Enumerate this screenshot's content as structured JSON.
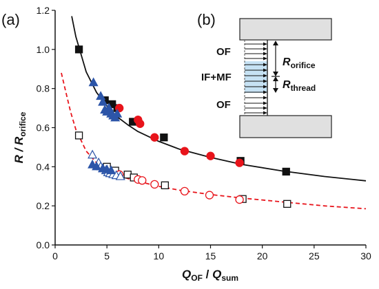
{
  "chart_data": {
    "type": "scatter",
    "panel_a_label": "(a)",
    "panel_b_label": "(b)",
    "xlabel": {
      "main": "Q",
      "sub": "OF",
      "sep": " / ",
      "main2": "Q",
      "sub2": "sum"
    },
    "ylabel": {
      "main": "R / R",
      "sub": "orifice"
    },
    "xlim": [
      0,
      30
    ],
    "ylim": [
      0,
      1.2
    ],
    "xticks": [
      "0",
      "5",
      "10",
      "15",
      "20",
      "25",
      "30"
    ],
    "yticks": [
      "0.0",
      "0.2",
      "0.4",
      "0.6",
      "0.8",
      "1.0",
      "1.2"
    ],
    "grid": false,
    "colors": {
      "black": "#111111",
      "red": "#e8141b",
      "blue": "#2c55a8",
      "fit_dashed": "#e8141b",
      "inset_fill": "#e0e0e0",
      "thread_fill": "#c6e2f4"
    },
    "fits": [
      {
        "style": "solid",
        "color": "#111111",
        "x": [
          1.6,
          2,
          3,
          4,
          5,
          6,
          7,
          8,
          10,
          12,
          15,
          18,
          22,
          26,
          30
        ],
        "y": [
          1.17,
          1.065,
          0.885,
          0.78,
          0.71,
          0.655,
          0.615,
          0.58,
          0.53,
          0.49,
          0.448,
          0.412,
          0.378,
          0.35,
          0.328
        ]
      },
      {
        "style": "dashed",
        "color": "#e8141b",
        "x": [
          0.6,
          1,
          1.5,
          2,
          3,
          4,
          5,
          6,
          7,
          8,
          10,
          12,
          15,
          18,
          22,
          26,
          30
        ],
        "y": [
          0.88,
          0.79,
          0.68,
          0.59,
          0.48,
          0.42,
          0.385,
          0.36,
          0.34,
          0.325,
          0.3,
          0.28,
          0.258,
          0.24,
          0.22,
          0.2,
          0.185
        ]
      }
    ],
    "series": [
      {
        "marker": "square",
        "fill": "filled",
        "color": "#111111",
        "x": [
          2.3,
          4.8,
          5.5,
          6.0,
          7.5,
          10.5,
          17.9,
          22.3
        ],
        "y": [
          1.0,
          0.74,
          0.72,
          0.7,
          0.63,
          0.55,
          0.43,
          0.375
        ]
      },
      {
        "marker": "circle",
        "fill": "filled",
        "color": "#e8141b",
        "x": [
          6.2,
          8.0,
          8.2,
          9.6,
          12.5,
          15.0,
          17.8
        ],
        "y": [
          0.7,
          0.64,
          0.62,
          0.55,
          0.48,
          0.455,
          0.42
        ]
      },
      {
        "marker": "triangle",
        "fill": "filled",
        "color": "#2c55a8",
        "x": [
          3.7,
          4.4,
          4.6,
          4.8,
          5.0,
          5.2,
          5.4,
          5.6,
          5.8,
          6.0
        ],
        "y": [
          0.83,
          0.76,
          0.73,
          0.69,
          0.68,
          0.7,
          0.67,
          0.66,
          0.65,
          0.67
        ]
      },
      {
        "marker": "square",
        "fill": "open",
        "color": "#111111",
        "x": [
          2.3,
          5.0,
          5.8,
          7.0,
          7.6,
          10.6,
          18.1,
          22.4
        ],
        "y": [
          0.56,
          0.4,
          0.38,
          0.36,
          0.345,
          0.305,
          0.235,
          0.21
        ]
      },
      {
        "marker": "circle",
        "fill": "open",
        "color": "#e8141b",
        "x": [
          6.2,
          8.0,
          8.4,
          9.6,
          12.5,
          14.9,
          17.8
        ],
        "y": [
          0.36,
          0.335,
          0.33,
          0.31,
          0.275,
          0.255,
          0.232
        ]
      },
      {
        "marker": "triangle",
        "fill": "open",
        "color": "#2c55a8",
        "x": [
          3.6,
          4.2,
          4.4,
          4.6,
          4.9,
          5.1,
          5.3,
          5.6,
          5.9,
          6.3
        ],
        "y": [
          0.46,
          0.42,
          0.4,
          0.39,
          0.38,
          0.37,
          0.365,
          0.36,
          0.355,
          0.35
        ]
      },
      {
        "marker": "triangle",
        "fill": "filled",
        "color": "#2c55a8",
        "x": [
          3.6,
          4.0,
          4.6,
          5.0,
          5.4
        ],
        "y": [
          0.41,
          0.4,
          0.39,
          0.385,
          0.38
        ]
      }
    ],
    "inset": {
      "labels_left": [
        "OF",
        "IF+MF",
        "OF"
      ],
      "r_orifice": {
        "main": "R",
        "sub": "orifice"
      },
      "r_thread": {
        "main": "R",
        "sub": "thread"
      }
    }
  }
}
